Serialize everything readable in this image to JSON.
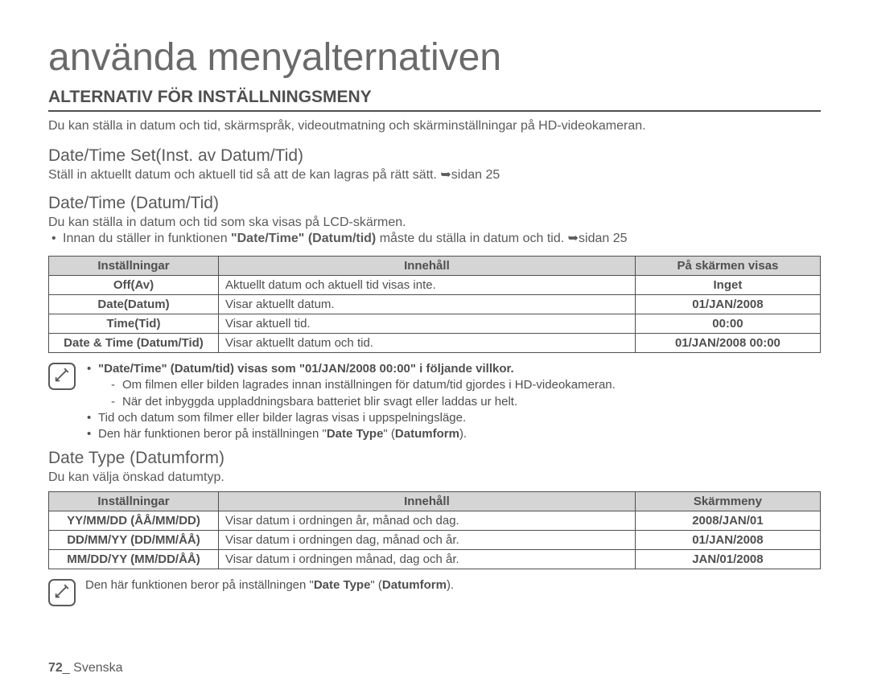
{
  "title": "använda menyalternativen",
  "section_heading": "ALTERNATIV FÖR INSTÄLLNINGSMENY",
  "intro": "Du kan ställa in datum och tid, skärmspråk, videoutmatning och skärminställningar på HD-videokameran.",
  "datetime_set": {
    "heading": "Date/Time Set(Inst. av Datum/Tid)",
    "text_before": "Ställ in aktuellt datum och aktuell tid så att de kan lagras på rätt sätt. ",
    "text_after": "sidan 25"
  },
  "datetime": {
    "heading": "Date/Time (Datum/Tid)",
    "line1": "Du kan ställa in datum och tid som ska visas på LCD-skärmen.",
    "bullet_before": "Innan du ställer in funktionen ",
    "bullet_bold": "\"Date/Time\" (Datum/tid)",
    "bullet_mid": " måste du ställa in datum och tid. ",
    "bullet_after": "sidan 25"
  },
  "table1": {
    "headers": [
      "Inställningar",
      "Innehåll",
      "På skärmen visas"
    ],
    "rows": [
      {
        "setting": "Off(Av)",
        "content": "Aktuellt datum och aktuell tid visas inte.",
        "display": "Inget"
      },
      {
        "setting": "Date(Datum)",
        "content": "Visar aktuellt datum.",
        "display": "01/JAN/2008"
      },
      {
        "setting": "Time(Tid)",
        "content": "Visar aktuell tid.",
        "display": "00:00"
      },
      {
        "setting": "Date & Time (Datum/Tid)",
        "content": "Visar aktuellt datum och tid.",
        "display": "01/JAN/2008 00:00"
      }
    ]
  },
  "note1": {
    "l1": "\"Date/Time\" (Datum/tid) visas som \"01/JAN/2008 00:00\" i följande villkor.",
    "s1": "Om filmen eller bilden lagrades innan inställningen för datum/tid gjordes i HD-videokameran.",
    "s2": "När det inbyggda uppladdningsbara batteriet blir svagt eller laddas ur helt.",
    "l2": "Tid och datum som filmer eller bilder lagras visas i uppspelningsläge.",
    "l3_before": "Den här funktionen beror på inställningen \"",
    "l3_bold": "Date Type",
    "l3_mid": "\" (",
    "l3_bold2": "Datumform",
    "l3_after": ")."
  },
  "datetype": {
    "heading": "Date Type (Datumform)",
    "text": "Du kan välja önskad datumtyp."
  },
  "table2": {
    "headers": [
      "Inställningar",
      "Innehåll",
      "Skärmmeny"
    ],
    "rows": [
      {
        "setting": "YY/MM/DD (ÅÅ/MM/DD)",
        "content": "Visar datum i ordningen år, månad och dag.",
        "display": "2008/JAN/01"
      },
      {
        "setting": "DD/MM/YY (DD/MM/ÅÅ)",
        "content": "Visar datum i ordningen dag, månad och år.",
        "display": "01/JAN/2008"
      },
      {
        "setting": "MM/DD/YY (MM/DD/ÅÅ)",
        "content": "Visar datum i ordningen månad, dag och år.",
        "display": "JAN/01/2008"
      }
    ]
  },
  "note2": {
    "before": "Den här funktionen beror på inställningen \"",
    "bold1": "Date Type",
    "mid": "\" (",
    "bold2": "Datumform",
    "after": ")."
  },
  "footer": {
    "page": "72",
    "sep": "_ ",
    "lang": "Svenska"
  }
}
